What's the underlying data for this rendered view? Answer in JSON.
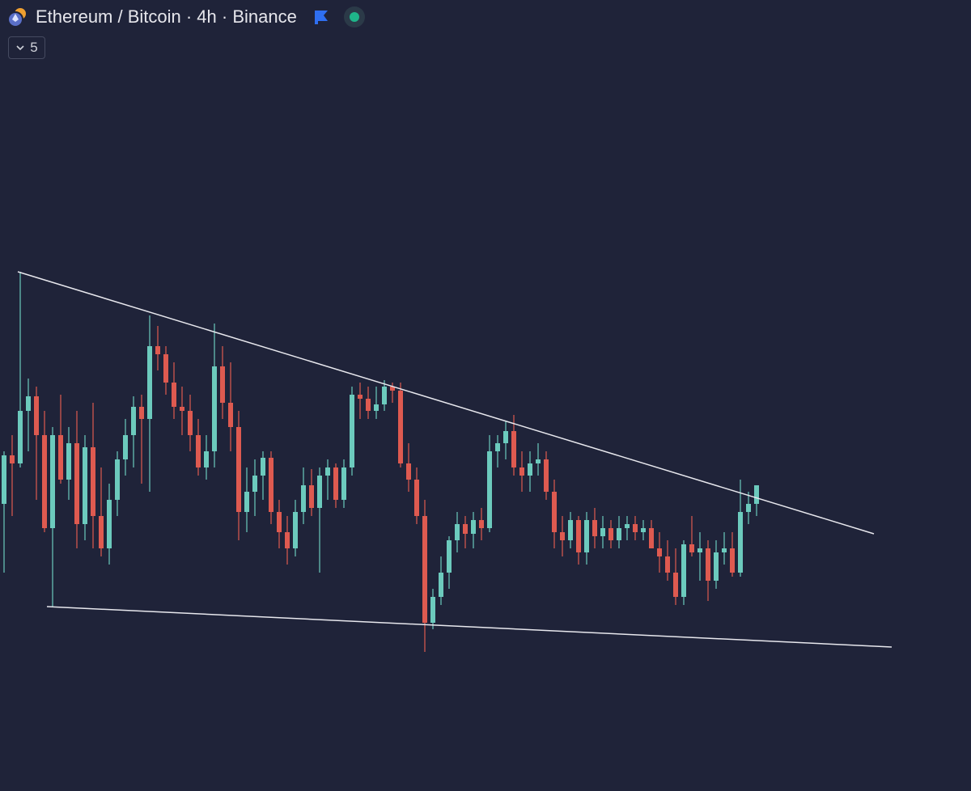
{
  "header": {
    "title": "Ethereum / Bitcoin · 4h · Binance",
    "indicator_count": 5
  },
  "chart_data": {
    "type": "candlestick",
    "up_color": "#6ccabd",
    "down_color": "#de5a50",
    "ylim": [
      0,
      978
    ],
    "ohlc": [
      [
        355,
        420,
        270,
        415
      ],
      [
        415,
        440,
        340,
        405
      ],
      [
        405,
        642,
        400,
        470
      ],
      [
        470,
        510,
        420,
        488
      ],
      [
        488,
        500,
        360,
        440
      ],
      [
        440,
        470,
        320,
        325
      ],
      [
        325,
        450,
        228,
        440
      ],
      [
        440,
        490,
        380,
        385
      ],
      [
        385,
        450,
        360,
        430
      ],
      [
        430,
        470,
        300,
        330
      ],
      [
        330,
        440,
        310,
        425
      ],
      [
        425,
        480,
        300,
        340
      ],
      [
        340,
        400,
        290,
        300
      ],
      [
        300,
        380,
        280,
        360
      ],
      [
        360,
        420,
        340,
        410
      ],
      [
        410,
        460,
        390,
        440
      ],
      [
        440,
        488,
        400,
        475
      ],
      [
        475,
        490,
        380,
        460
      ],
      [
        460,
        588,
        370,
        550
      ],
      [
        550,
        575,
        520,
        540
      ],
      [
        540,
        550,
        490,
        505
      ],
      [
        505,
        530,
        460,
        475
      ],
      [
        475,
        500,
        440,
        470
      ],
      [
        470,
        490,
        420,
        440
      ],
      [
        440,
        460,
        390,
        400
      ],
      [
        400,
        440,
        385,
        420
      ],
      [
        420,
        578,
        400,
        525
      ],
      [
        525,
        550,
        460,
        480
      ],
      [
        480,
        530,
        420,
        450
      ],
      [
        450,
        470,
        310,
        345
      ],
      [
        345,
        400,
        320,
        370
      ],
      [
        370,
        410,
        340,
        390
      ],
      [
        390,
        420,
        360,
        412
      ],
      [
        412,
        420,
        330,
        345
      ],
      [
        345,
        360,
        300,
        320
      ],
      [
        320,
        340,
        280,
        300
      ],
      [
        300,
        360,
        290,
        345
      ],
      [
        345,
        400,
        330,
        378
      ],
      [
        378,
        398,
        340,
        350
      ],
      [
        350,
        400,
        270,
        390
      ],
      [
        390,
        410,
        360,
        400
      ],
      [
        400,
        405,
        350,
        360
      ],
      [
        360,
        410,
        350,
        400
      ],
      [
        400,
        500,
        390,
        490
      ],
      [
        490,
        505,
        460,
        485
      ],
      [
        485,
        500,
        460,
        470
      ],
      [
        470,
        500,
        460,
        478
      ],
      [
        478,
        508,
        470,
        500
      ],
      [
        500,
        505,
        480,
        495
      ],
      [
        495,
        505,
        400,
        405
      ],
      [
        405,
        430,
        370,
        385
      ],
      [
        385,
        400,
        330,
        340
      ],
      [
        340,
        360,
        172,
        208
      ],
      [
        208,
        250,
        200,
        240
      ],
      [
        240,
        290,
        230,
        270
      ],
      [
        270,
        315,
        250,
        310
      ],
      [
        310,
        345,
        295,
        330
      ],
      [
        330,
        340,
        300,
        318
      ],
      [
        318,
        345,
        300,
        335
      ],
      [
        335,
        350,
        310,
        325
      ],
      [
        325,
        440,
        320,
        420
      ],
      [
        420,
        440,
        400,
        430
      ],
      [
        430,
        458,
        410,
        445
      ],
      [
        445,
        465,
        390,
        400
      ],
      [
        400,
        420,
        370,
        390
      ],
      [
        390,
        420,
        370,
        405
      ],
      [
        405,
        430,
        390,
        410
      ],
      [
        410,
        420,
        360,
        370
      ],
      [
        370,
        385,
        300,
        320
      ],
      [
        320,
        340,
        290,
        310
      ],
      [
        310,
        345,
        300,
        335
      ],
      [
        335,
        340,
        280,
        295
      ],
      [
        295,
        345,
        280,
        335
      ],
      [
        335,
        350,
        300,
        315
      ],
      [
        315,
        340,
        300,
        325
      ],
      [
        325,
        335,
        300,
        310
      ],
      [
        310,
        340,
        300,
        325
      ],
      [
        325,
        340,
        310,
        330
      ],
      [
        330,
        340,
        310,
        320
      ],
      [
        320,
        335,
        310,
        325
      ],
      [
        325,
        335,
        300,
        300
      ],
      [
        300,
        320,
        270,
        290
      ],
      [
        290,
        310,
        260,
        270
      ],
      [
        270,
        300,
        230,
        240
      ],
      [
        240,
        310,
        230,
        305
      ],
      [
        305,
        340,
        290,
        295
      ],
      [
        295,
        320,
        260,
        300
      ],
      [
        300,
        310,
        235,
        260
      ],
      [
        260,
        310,
        250,
        295
      ],
      [
        295,
        320,
        280,
        300
      ],
      [
        300,
        320,
        265,
        270
      ],
      [
        270,
        385,
        265,
        345
      ],
      [
        345,
        370,
        330,
        355
      ],
      [
        355,
        378,
        340,
        378
      ]
    ],
    "trendlines": [
      {
        "x": [
          1.7,
          107.5
        ],
        "values": [
          642,
          318
        ]
      },
      {
        "x": [
          5.3,
          109.7
        ],
        "values": [
          228,
          178
        ]
      }
    ],
    "trendline_color": "#e8e8ee"
  }
}
